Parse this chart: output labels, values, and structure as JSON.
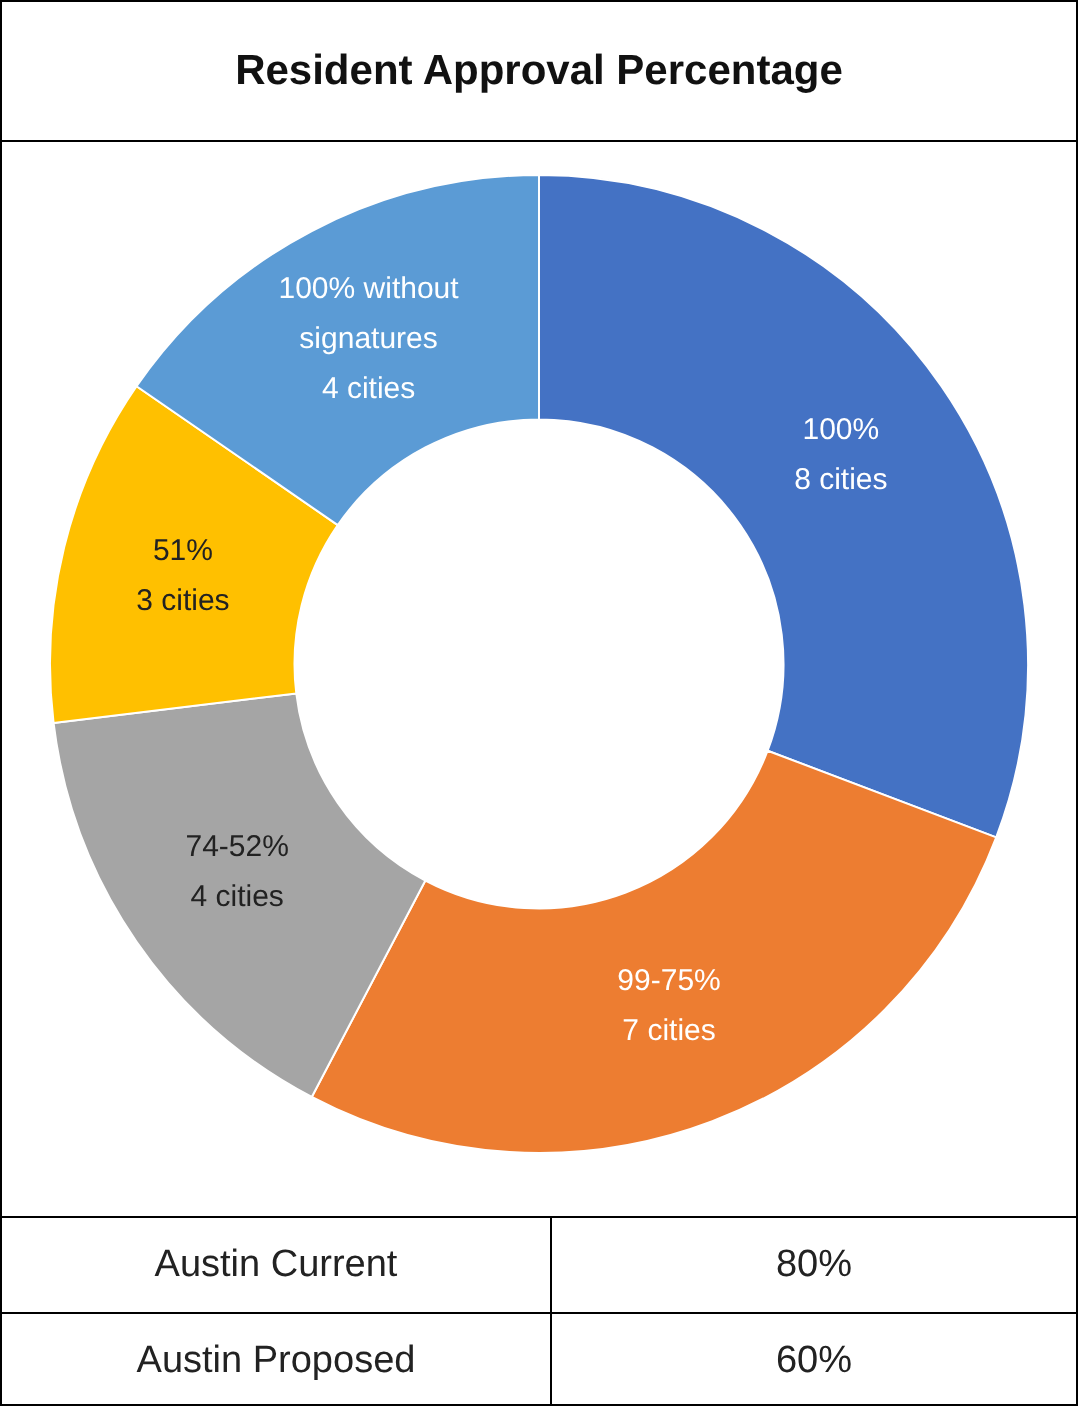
{
  "chart_data": {
    "type": "donut",
    "title": "Resident Approval Percentage",
    "categories": [
      "100%",
      "99-75%",
      "74-52%",
      "51%",
      "100% without signatures"
    ],
    "values": [
      8,
      7,
      4,
      3,
      4
    ],
    "value_labels": [
      "8 cities",
      "7 cities",
      "4 cities",
      "3 cities",
      "4 cities"
    ],
    "colors": [
      "#4472c4",
      "#ed7d31",
      "#a5a5a5",
      "#ffc000",
      "#5b9bd5"
    ],
    "legend": false,
    "annotations": [
      "Austin Current",
      "80%",
      "Austin Proposed",
      "60%"
    ]
  }
}
